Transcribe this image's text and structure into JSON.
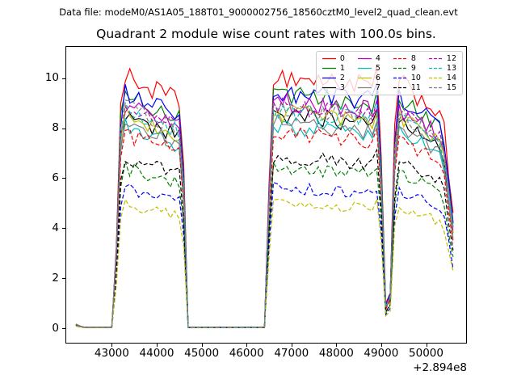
{
  "header": {
    "datafile": "Data file: modeM0/AS1A05_188T01_9000002756_18560cztM0_level2_quad_clean.evt"
  },
  "chart_data": {
    "type": "line",
    "title": "Quadrant 2 module wise count rates with 100.0s bins.",
    "xlabel": "",
    "ylabel": "",
    "bin_seconds": 100.0,
    "x_offset_text": "+2.894e8",
    "xlim": [
      41985,
      50890
    ],
    "ylim": [
      -0.58,
      11.25
    ],
    "xticks": [
      43000,
      44000,
      45000,
      46000,
      47000,
      48000,
      49000,
      50000
    ],
    "yticks": [
      0,
      2,
      4,
      6,
      8,
      10
    ],
    "grid": false,
    "legend": {
      "position": "upper right",
      "columns": 4,
      "column_major": true
    },
    "x_start": 42200,
    "x_end": 50600,
    "time_profile": [
      [
        42200,
        0.018
      ],
      [
        42300,
        0.008
      ],
      [
        42400,
        0.004
      ],
      [
        43040,
        0.004
      ],
      [
        43220,
        1.04
      ],
      [
        44560,
        0.93
      ],
      [
        44700,
        0.004
      ],
      [
        46400,
        0.004
      ],
      [
        46570,
        1.04
      ],
      [
        48820,
        1.0
      ],
      [
        48940,
        1.06
      ],
      [
        49100,
        0.1
      ],
      [
        49180,
        0.015
      ],
      [
        49330,
        1.02
      ],
      [
        50250,
        0.9
      ],
      [
        50380,
        0.85
      ],
      [
        50620,
        0.42
      ]
    ],
    "noise_fraction": 0.045,
    "series": [
      {
        "name": "0",
        "color": "#ff0000",
        "dash": false,
        "level": 9.7
      },
      {
        "name": "1",
        "color": "#008000",
        "dash": false,
        "level": 9.0
      },
      {
        "name": "2",
        "color": "#0000ff",
        "dash": false,
        "level": 9.1
      },
      {
        "name": "3",
        "color": "#000000",
        "dash": false,
        "level": 8.2
      },
      {
        "name": "4",
        "color": "#bf00bf",
        "dash": false,
        "level": 8.7
      },
      {
        "name": "5",
        "color": "#00bfbf",
        "dash": false,
        "level": 7.8
      },
      {
        "name": "6",
        "color": "#bfbf00",
        "dash": false,
        "level": 8.3
      },
      {
        "name": "7",
        "color": "#808080",
        "dash": false,
        "level": 7.9
      },
      {
        "name": "8",
        "color": "#ff0000",
        "dash": true,
        "level": 7.5
      },
      {
        "name": "9",
        "color": "#008000",
        "dash": true,
        "level": 6.2
      },
      {
        "name": "10",
        "color": "#0000ff",
        "dash": true,
        "level": 5.4
      },
      {
        "name": "11",
        "color": "#000000",
        "dash": true,
        "level": 6.6
      },
      {
        "name": "12",
        "color": "#bf00bf",
        "dash": true,
        "level": 8.6
      },
      {
        "name": "13",
        "color": "#00bfbf",
        "dash": true,
        "level": 8.4
      },
      {
        "name": "14",
        "color": "#bfbf00",
        "dash": true,
        "level": 4.8
      },
      {
        "name": "15",
        "color": "#808080",
        "dash": true,
        "level": 8.5
      }
    ]
  }
}
